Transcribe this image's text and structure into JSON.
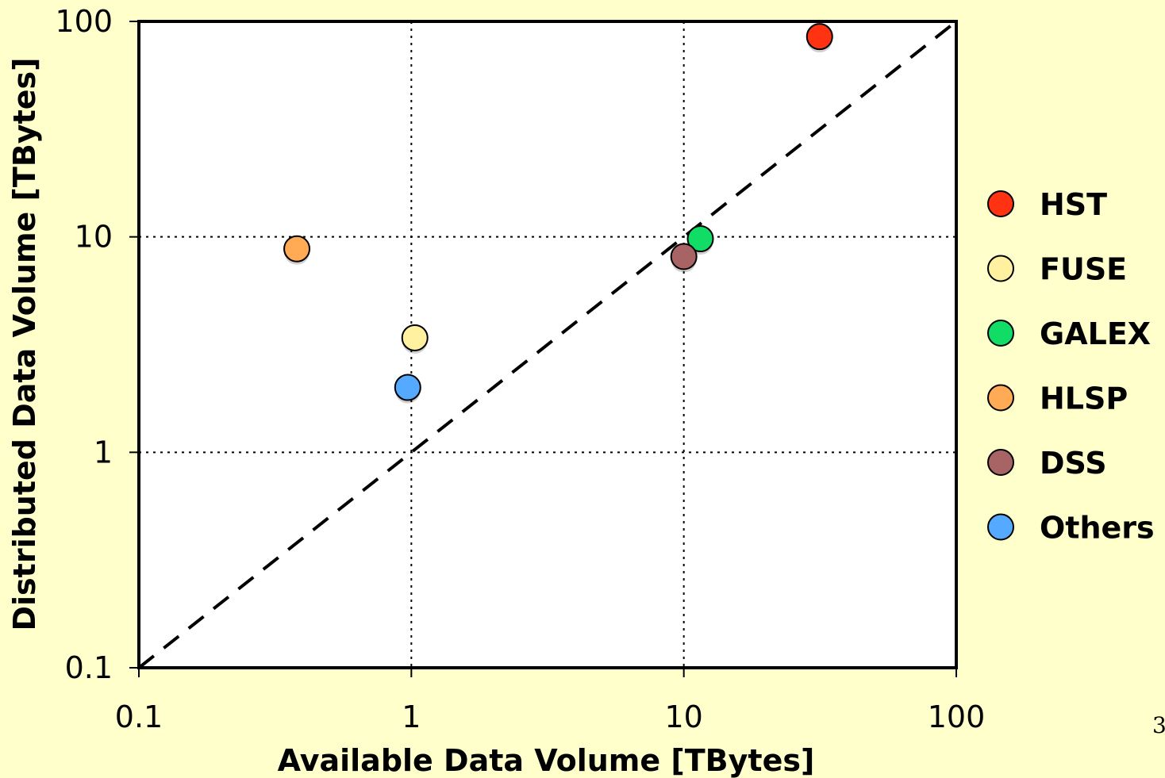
{
  "page_number": "3",
  "chart_data": {
    "type": "scatter",
    "title": "",
    "xlabel": "Available Data Volume [TBytes]",
    "ylabel": "Distributed Data Volume [TBytes]",
    "xscale": "log",
    "yscale": "log",
    "xlim": [
      0.1,
      100
    ],
    "ylim": [
      0.1,
      100
    ],
    "x_ticks": [
      {
        "value": 0.1,
        "label": "0.1"
      },
      {
        "value": 1,
        "label": "1"
      },
      {
        "value": 10,
        "label": "10"
      },
      {
        "value": 100,
        "label": "100"
      }
    ],
    "y_ticks": [
      {
        "value": 0.1,
        "label": "0.1"
      },
      {
        "value": 1,
        "label": "1"
      },
      {
        "value": 10,
        "label": "10"
      },
      {
        "value": 100,
        "label": "100"
      }
    ],
    "grid": "dotted at major decades",
    "reference_line": {
      "style": "dashed",
      "points": [
        [
          0.1,
          0.1
        ],
        [
          100,
          100
        ]
      ]
    },
    "legend_position": "right",
    "series": [
      {
        "name": "HST",
        "color": "#FF3311",
        "points": [
          [
            31.5,
            85
          ]
        ]
      },
      {
        "name": "FUSE",
        "color": "#FFF1A0",
        "points": [
          [
            1.03,
            3.4
          ]
        ]
      },
      {
        "name": "GALEX",
        "color": "#11DD66",
        "points": [
          [
            11.5,
            9.8
          ]
        ]
      },
      {
        "name": "HLSP",
        "color": "#FFAA55",
        "points": [
          [
            0.38,
            8.8
          ]
        ]
      },
      {
        "name": "DSS",
        "color": "#A86464",
        "points": [
          [
            10,
            8.1
          ]
        ]
      },
      {
        "name": "Others",
        "color": "#55AAFF",
        "points": [
          [
            0.97,
            2.0
          ]
        ]
      }
    ]
  }
}
